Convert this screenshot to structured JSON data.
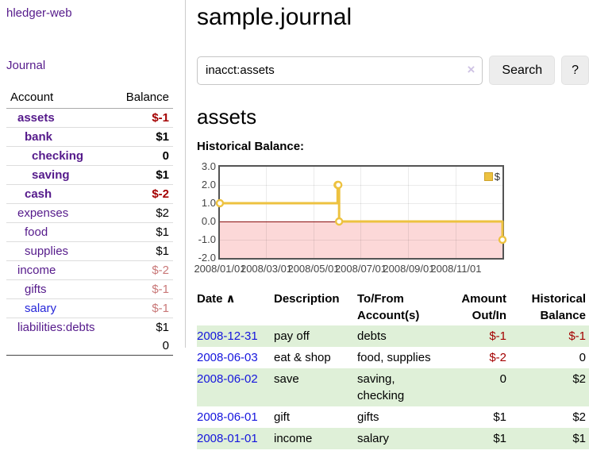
{
  "sidebar": {
    "app_title": "hledger-web",
    "journal_link": "Journal",
    "accounts_header": {
      "account": "Account",
      "balance": "Balance"
    },
    "accounts": [
      {
        "name": "assets",
        "depth": 0,
        "bold": true,
        "balance": "$-1"
      },
      {
        "name": "bank",
        "depth": 1,
        "bold": true,
        "balance": "$1"
      },
      {
        "name": "checking",
        "depth": 2,
        "bold": true,
        "balance": "0"
      },
      {
        "name": "saving",
        "depth": 2,
        "bold": true,
        "balance": "$1"
      },
      {
        "name": "cash",
        "depth": 1,
        "bold": true,
        "balance": "$-2"
      },
      {
        "name": "expenses",
        "depth": 0,
        "bold": false,
        "balance": "$2"
      },
      {
        "name": "food",
        "depth": 1,
        "bold": false,
        "balance": "$1"
      },
      {
        "name": "supplies",
        "depth": 1,
        "bold": false,
        "balance": "$1"
      },
      {
        "name": "income",
        "depth": 0,
        "bold": false,
        "balance": "$-2"
      },
      {
        "name": "gifts",
        "depth": 1,
        "bold": false,
        "balance": "$-1"
      },
      {
        "name": "salary",
        "depth": 1,
        "bold": false,
        "balance": "$-1",
        "unvisited": true
      },
      {
        "name": "liabilities:debts",
        "depth": 0,
        "bold": false,
        "balance": "$1"
      }
    ],
    "total": "0"
  },
  "main": {
    "title": "sample.journal",
    "account_heading": "assets",
    "chart_label": "Historical Balance:"
  },
  "search": {
    "value": "inacct:assets",
    "clear_icon": "×",
    "button_label": "Search",
    "help_label": "?"
  },
  "chart_data": {
    "type": "line",
    "title": "Historical Balance",
    "step": true,
    "x": [
      "2008-01-01",
      "2008-06-01",
      "2008-06-02",
      "2008-06-03",
      "2008-12-31"
    ],
    "series": [
      {
        "name": "$",
        "values": [
          1,
          2,
          2,
          0,
          -1
        ]
      }
    ],
    "x_range": [
      "2008-01-01",
      "2008-12-31"
    ],
    "ylim": [
      -2,
      3
    ],
    "yticks": [
      "3.0",
      "2.0",
      "1.0",
      "0.0",
      "-1.0",
      "-2.0"
    ],
    "xticks": [
      "2008/01/01",
      "2008/03/01",
      "2008/05/01",
      "2008/07/01",
      "2008/09/01",
      "2008/11/01"
    ],
    "legend": [
      {
        "label": "$",
        "color": "#edc240"
      }
    ],
    "line_color": "#edc240",
    "marker_fill": "#ffffff",
    "negative_region_color": "#fcd8d8",
    "zero_line_color": "#8b1010",
    "grid": true,
    "legend_position": "top-right"
  },
  "register": {
    "headers": {
      "date": "Date",
      "sort_icon": "∧",
      "description": "Description",
      "accounts": "To/From\nAccount(s)",
      "amount": "Amount\nOut/In",
      "balance": "Historical\nBalance"
    },
    "rows": [
      {
        "date": "2008-12-31",
        "description": "pay off",
        "accounts": "debts",
        "amount": "$-1",
        "balance": "$-1"
      },
      {
        "date": "2008-06-03",
        "description": "eat & shop",
        "accounts": "food, supplies",
        "amount": "$-2",
        "balance": "0"
      },
      {
        "date": "2008-06-02",
        "description": "save",
        "accounts": "saving,\nchecking",
        "amount": "0",
        "balance": "$2"
      },
      {
        "date": "2008-06-01",
        "description": "gift",
        "accounts": "gifts",
        "amount": "$1",
        "balance": "$2"
      },
      {
        "date": "2008-01-01",
        "description": "income",
        "accounts": "salary",
        "amount": "$1",
        "balance": "$1"
      }
    ]
  },
  "colors": {
    "link_purple": "#551a8b",
    "link_blue": "#2626d9",
    "negative_strong": "#a40000",
    "negative_soft": "#c97878",
    "row_stripe_green": "#dff0d8",
    "chart_gold": "#edc240",
    "chart_border": "#545454"
  }
}
